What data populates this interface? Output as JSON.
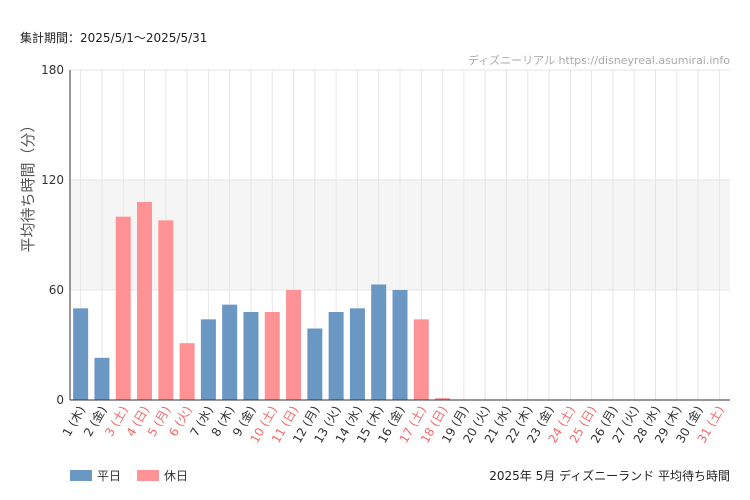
{
  "header": {
    "period": "集計期間：2025/5/1〜2025/5/31",
    "credit": "ディズニーリアル https://disneyreal.asumirai.info"
  },
  "footer": {
    "title": "2025年 5月 ディズニーランド 平均待ち時間"
  },
  "colors": {
    "weekday": "#6b97c3",
    "holiday": "#fe9294",
    "holiday_text": "#f36a6a",
    "band": "#f5f5f5",
    "grid": "#e6e6e6",
    "axis": "#333333"
  },
  "chart_data": {
    "type": "bar",
    "title": "",
    "ylabel": "平均待ち時間（分）",
    "xlabel": "",
    "ylim": [
      0,
      180
    ],
    "yticks": [
      0,
      60,
      120,
      180
    ],
    "band": [
      60,
      120
    ],
    "legend": [
      "平日",
      "休日"
    ],
    "legend_position": "bottom-left",
    "grid": true,
    "categories": [
      "1 (木)",
      "2 (金)",
      "3 (土)",
      "4 (日)",
      "5 (月)",
      "6 (火)",
      "7 (水)",
      "8 (木)",
      "9 (金)",
      "10 (土)",
      "11 (日)",
      "12 (月)",
      "13 (火)",
      "14 (水)",
      "15 (木)",
      "16 (金)",
      "17 (土)",
      "18 (日)",
      "19 (月)",
      "20 (火)",
      "21 (水)",
      "22 (木)",
      "23 (金)",
      "24 (土)",
      "25 (日)",
      "26 (月)",
      "27 (火)",
      "28 (水)",
      "29 (木)",
      "30 (金)",
      "31 (土)"
    ],
    "holiday": [
      false,
      false,
      true,
      true,
      true,
      true,
      false,
      false,
      false,
      true,
      true,
      false,
      false,
      false,
      false,
      false,
      true,
      true,
      false,
      false,
      false,
      false,
      false,
      true,
      true,
      false,
      false,
      false,
      false,
      false,
      true
    ],
    "values": [
      50,
      23,
      100,
      108,
      98,
      31,
      44,
      52,
      48,
      48,
      60,
      39,
      48,
      50,
      63,
      60,
      44,
      1,
      null,
      null,
      null,
      null,
      null,
      null,
      null,
      null,
      null,
      null,
      null,
      null,
      null
    ]
  }
}
